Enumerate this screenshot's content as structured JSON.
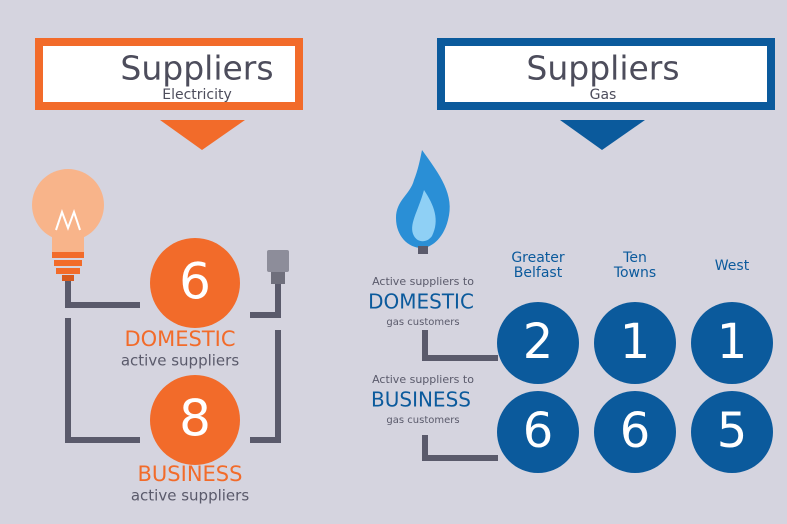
{
  "electricity": {
    "title": "Suppliers",
    "subtitle": "Electricity",
    "domestic": {
      "count": 6,
      "label": "DOMESTIC",
      "caption": "active suppliers"
    },
    "business": {
      "count": 8,
      "label": "BUSINESS",
      "caption": "active suppliers"
    }
  },
  "gas": {
    "title": "Suppliers",
    "subtitle": "Gas",
    "regions": [
      [
        "Greater",
        "Belfast"
      ],
      [
        "Ten",
        "Towns"
      ],
      [
        "West"
      ]
    ],
    "domestic": {
      "intro": "Active suppliers to",
      "label": "DOMESTIC",
      "caption": "gas customers",
      "counts": [
        2,
        1,
        1
      ]
    },
    "business": {
      "intro": "Active suppliers to",
      "label": "BUSINESS",
      "caption": "gas customers",
      "counts": [
        6,
        6,
        5
      ]
    }
  }
}
